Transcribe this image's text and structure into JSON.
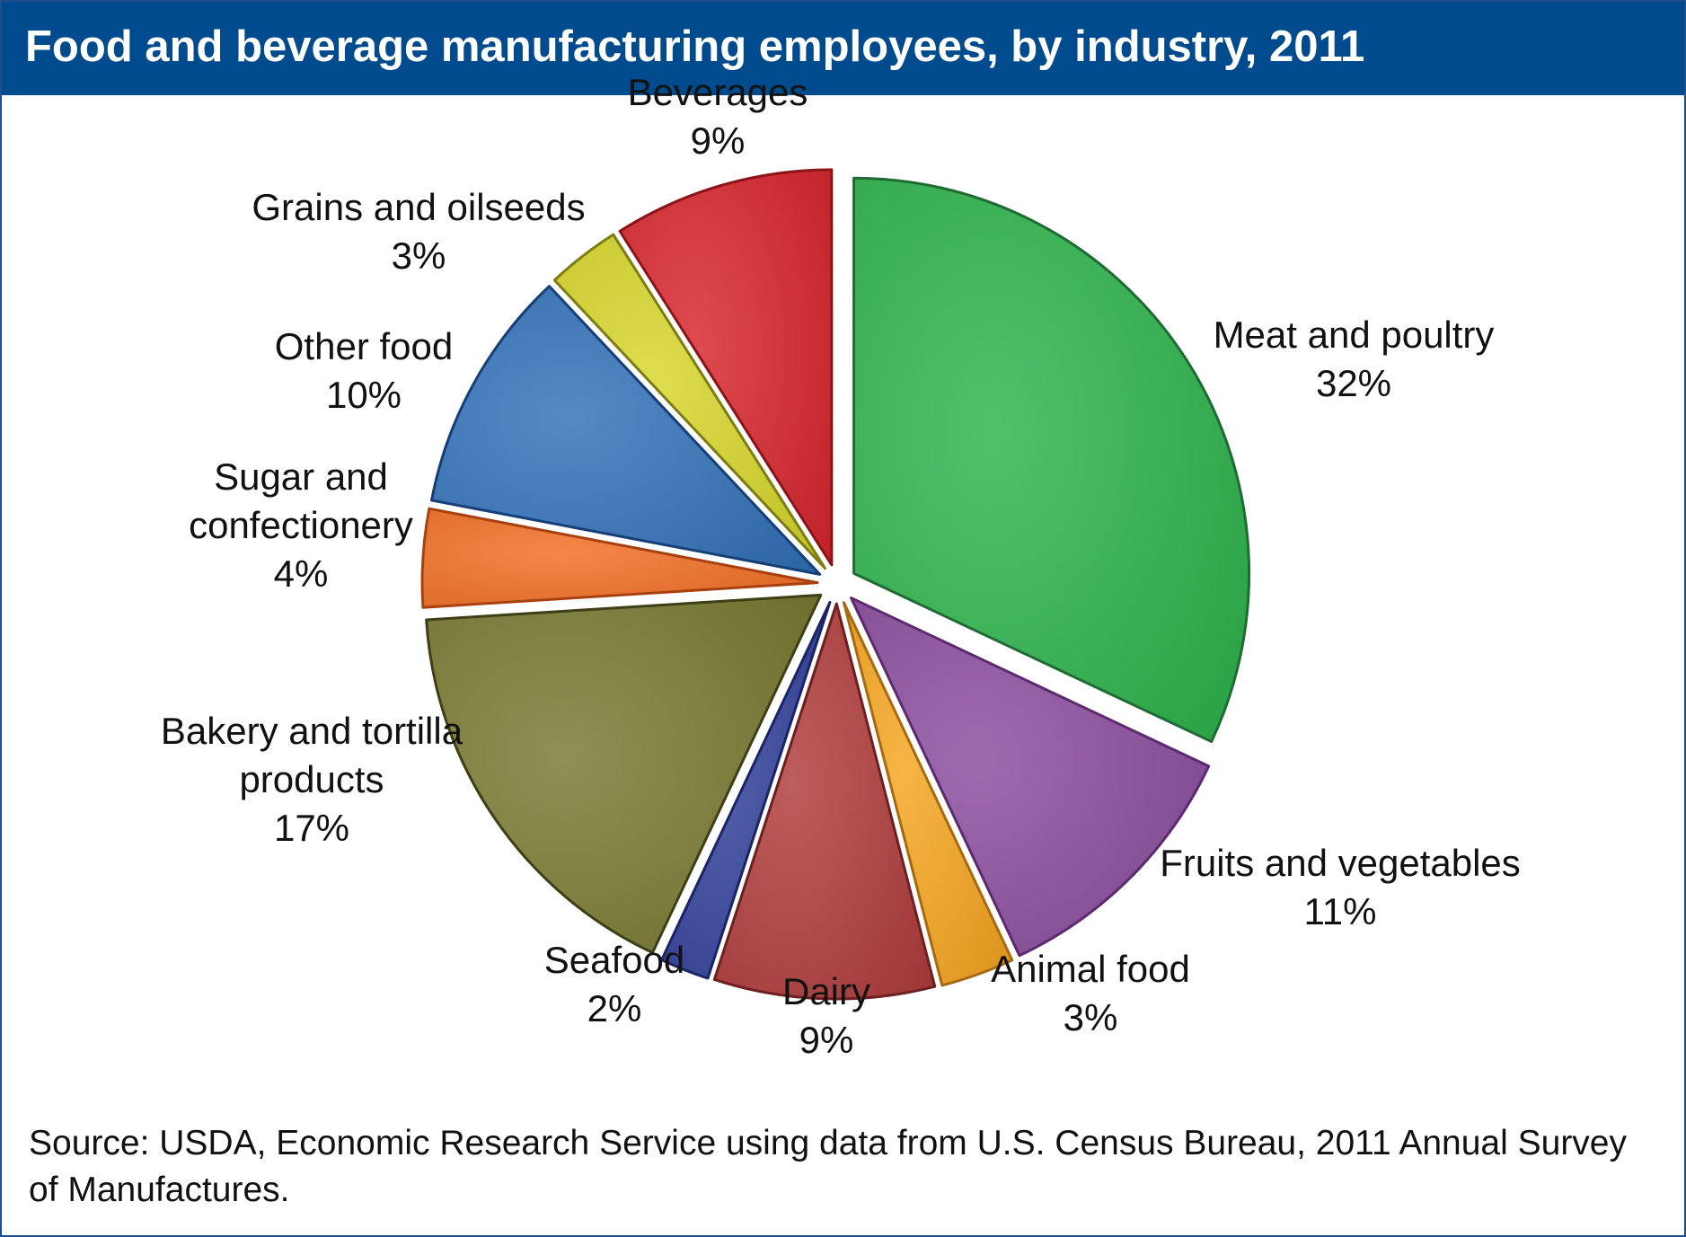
{
  "title": "Food and beverage manufacturing employees, by industry, 2011",
  "source": "Source: USDA, Economic Research Service using data from U.S. Census Bureau, 2011 Annual Survey of Manufactures.",
  "chart_data": {
    "type": "pie",
    "title": "Food and beverage manufacturing employees, by industry, 2011",
    "unit": "%",
    "slices": [
      {
        "name": "Meat and poultry",
        "value": 32,
        "label_lines": [
          "Meat and poultry",
          "32%"
        ],
        "color": "#2bb34a",
        "stroke": "#1e6b33"
      },
      {
        "name": "Fruits and vegetables",
        "value": 11,
        "label_lines": [
          "Fruits and vegetables",
          "11%"
        ],
        "color": "#8a4b9e",
        "stroke": "#5d2a70"
      },
      {
        "name": "Animal food",
        "value": 3,
        "label_lines": [
          "Animal food",
          "3%"
        ],
        "color": "#f7a51c",
        "stroke": "#a86a10"
      },
      {
        "name": "Dairy",
        "value": 9,
        "label_lines": [
          "Dairy",
          "9%"
        ],
        "color": "#b03a3a",
        "stroke": "#6e1f1f"
      },
      {
        "name": "Seafood",
        "value": 2,
        "label_lines": [
          "Seafood",
          "2%"
        ],
        "color": "#2f3f9a",
        "stroke": "#1a2466"
      },
      {
        "name": "Bakery and tortilla products",
        "value": 17,
        "label_lines": [
          "Bakery and tortilla",
          "products",
          "17%"
        ],
        "color": "#77782e",
        "stroke": "#3e3f16"
      },
      {
        "name": "Sugar and confectionery",
        "value": 4,
        "label_lines": [
          "Sugar and",
          "confectionery",
          "4%"
        ],
        "color": "#f26d21",
        "stroke": "#a8400f"
      },
      {
        "name": "Other food",
        "value": 10,
        "label_lines": [
          "Other food",
          "10%"
        ],
        "color": "#2f6fb8",
        "stroke": "#163f78"
      },
      {
        "name": "Grains and oilseeds",
        "value": 3,
        "label_lines": [
          "Grains and oilseeds",
          "3%"
        ],
        "color": "#d7d728",
        "stroke": "#7d7d12"
      },
      {
        "name": "Beverages",
        "value": 9,
        "label_lines": [
          "Beverages",
          "9%"
        ],
        "color": "#d8232a",
        "stroke": "#8a1418"
      }
    ]
  }
}
